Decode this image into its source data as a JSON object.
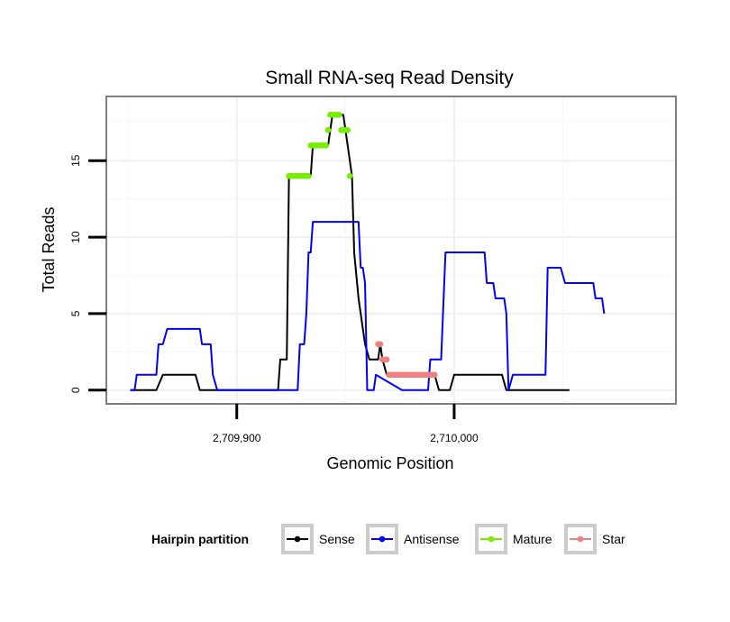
{
  "chart_data": {
    "type": "line",
    "title": "Small RNA-seq Read Density",
    "xlabel": "Genomic Position",
    "ylabel": "Total Reads",
    "xlim": [
      2709840,
      2710102
    ],
    "ylim": [
      -0.9,
      19.2
    ],
    "x_ticks": [
      2709900,
      2710000
    ],
    "x_tick_labels": [
      "2,709,900",
      "2,710,000"
    ],
    "y_ticks": [
      0,
      5,
      10,
      15
    ],
    "y_tick_labels": [
      "0",
      "5",
      "10",
      "15"
    ],
    "grid": true,
    "legend_position": "bottom",
    "legend_title": "Hairpin partition",
    "series": [
      {
        "name": "Sense",
        "style": "line",
        "color": "#000000",
        "points": [
          [
            2709851,
            0
          ],
          [
            2709863,
            0
          ],
          [
            2709866,
            1
          ],
          [
            2709881,
            1
          ],
          [
            2709883,
            0
          ],
          [
            2709919,
            0
          ],
          [
            2709920,
            2
          ],
          [
            2709923,
            2
          ],
          [
            2709924,
            14
          ],
          [
            2709934,
            14
          ],
          [
            2709935,
            16
          ],
          [
            2709942,
            16
          ],
          [
            2709943,
            17
          ],
          [
            2709944,
            18
          ],
          [
            2709949,
            18
          ],
          [
            2709950,
            17
          ],
          [
            2709953,
            14
          ],
          [
            2709954,
            9
          ],
          [
            2709956,
            6
          ],
          [
            2709958,
            4
          ],
          [
            2709959,
            3
          ],
          [
            2709961,
            2
          ],
          [
            2709965,
            2
          ],
          [
            2709966,
            3
          ],
          [
            2709967,
            2
          ],
          [
            2709969,
            1
          ],
          [
            2709991,
            1
          ],
          [
            2709993,
            0
          ],
          [
            2709998,
            0
          ],
          [
            2710000,
            1
          ],
          [
            2710022,
            1
          ],
          [
            2710024,
            0
          ],
          [
            2710053,
            0
          ]
        ]
      },
      {
        "name": "Antisense",
        "style": "line",
        "color": "#0000ff",
        "points": [
          [
            2709851,
            0
          ],
          [
            2709853,
            0
          ],
          [
            2709854,
            1
          ],
          [
            2709863,
            1
          ],
          [
            2709864,
            3
          ],
          [
            2709866,
            3
          ],
          [
            2709868,
            4
          ],
          [
            2709883,
            4
          ],
          [
            2709884,
            3
          ],
          [
            2709888,
            3
          ],
          [
            2709889,
            1
          ],
          [
            2709891,
            0
          ],
          [
            2709928,
            0
          ],
          [
            2709929,
            3
          ],
          [
            2709931,
            3
          ],
          [
            2709932,
            5
          ],
          [
            2709933,
            9
          ],
          [
            2709934,
            9
          ],
          [
            2709935,
            11
          ],
          [
            2709956,
            11
          ],
          [
            2709957,
            8
          ],
          [
            2709958,
            8
          ],
          [
            2709959,
            7
          ],
          [
            2709960,
            0
          ],
          [
            2709963,
            0
          ],
          [
            2709964,
            1
          ],
          [
            2709976,
            0
          ],
          [
            2709988,
            0
          ],
          [
            2709989,
            2
          ],
          [
            2709994,
            2
          ],
          [
            2709996,
            9
          ],
          [
            2710014,
            9
          ],
          [
            2710015,
            7
          ],
          [
            2710018,
            7
          ],
          [
            2710019,
            6
          ],
          [
            2710023,
            6
          ],
          [
            2710024,
            5
          ],
          [
            2710025,
            0
          ],
          [
            2710027,
            1
          ],
          [
            2710042,
            1
          ],
          [
            2710043,
            8
          ],
          [
            2710049,
            8
          ],
          [
            2710051,
            7
          ],
          [
            2710064,
            7
          ],
          [
            2710065,
            6
          ],
          [
            2710068,
            6
          ],
          [
            2710069,
            5
          ]
        ]
      },
      {
        "name": "Mature",
        "style": "points",
        "color": "#76ee00",
        "points": [
          [
            2709924,
            14
          ],
          [
            2709925,
            14
          ],
          [
            2709926,
            14
          ],
          [
            2709927,
            14
          ],
          [
            2709928,
            14
          ],
          [
            2709929,
            14
          ],
          [
            2709930,
            14
          ],
          [
            2709931,
            14
          ],
          [
            2709932,
            14
          ],
          [
            2709933,
            14
          ],
          [
            2709934,
            16
          ],
          [
            2709935,
            16
          ],
          [
            2709936,
            16
          ],
          [
            2709937,
            16
          ],
          [
            2709938,
            16
          ],
          [
            2709939,
            16
          ],
          [
            2709940,
            16
          ],
          [
            2709941,
            16
          ],
          [
            2709942,
            17
          ],
          [
            2709943,
            18
          ],
          [
            2709944,
            18
          ],
          [
            2709945,
            18
          ],
          [
            2709946,
            18
          ],
          [
            2709947,
            18
          ],
          [
            2709948,
            17
          ],
          [
            2709949,
            17
          ],
          [
            2709950,
            17
          ],
          [
            2709951,
            17
          ],
          [
            2709952,
            14
          ]
        ]
      },
      {
        "name": "Star",
        "style": "points",
        "color": "#f08080",
        "points": [
          [
            2709965,
            3
          ],
          [
            2709966,
            3
          ],
          [
            2709967,
            2
          ],
          [
            2709968,
            2
          ],
          [
            2709969,
            2
          ],
          [
            2709970,
            1
          ],
          [
            2709971,
            1
          ],
          [
            2709972,
            1
          ],
          [
            2709973,
            1
          ],
          [
            2709974,
            1
          ],
          [
            2709975,
            1
          ],
          [
            2709976,
            1
          ],
          [
            2709977,
            1
          ],
          [
            2709978,
            1
          ],
          [
            2709979,
            1
          ],
          [
            2709980,
            1
          ],
          [
            2709981,
            1
          ],
          [
            2709982,
            1
          ],
          [
            2709983,
            1
          ],
          [
            2709984,
            1
          ],
          [
            2709985,
            1
          ],
          [
            2709986,
            1
          ],
          [
            2709987,
            1
          ],
          [
            2709988,
            1
          ],
          [
            2709989,
            1
          ],
          [
            2709990,
            1
          ],
          [
            2709991,
            1
          ]
        ]
      }
    ]
  }
}
